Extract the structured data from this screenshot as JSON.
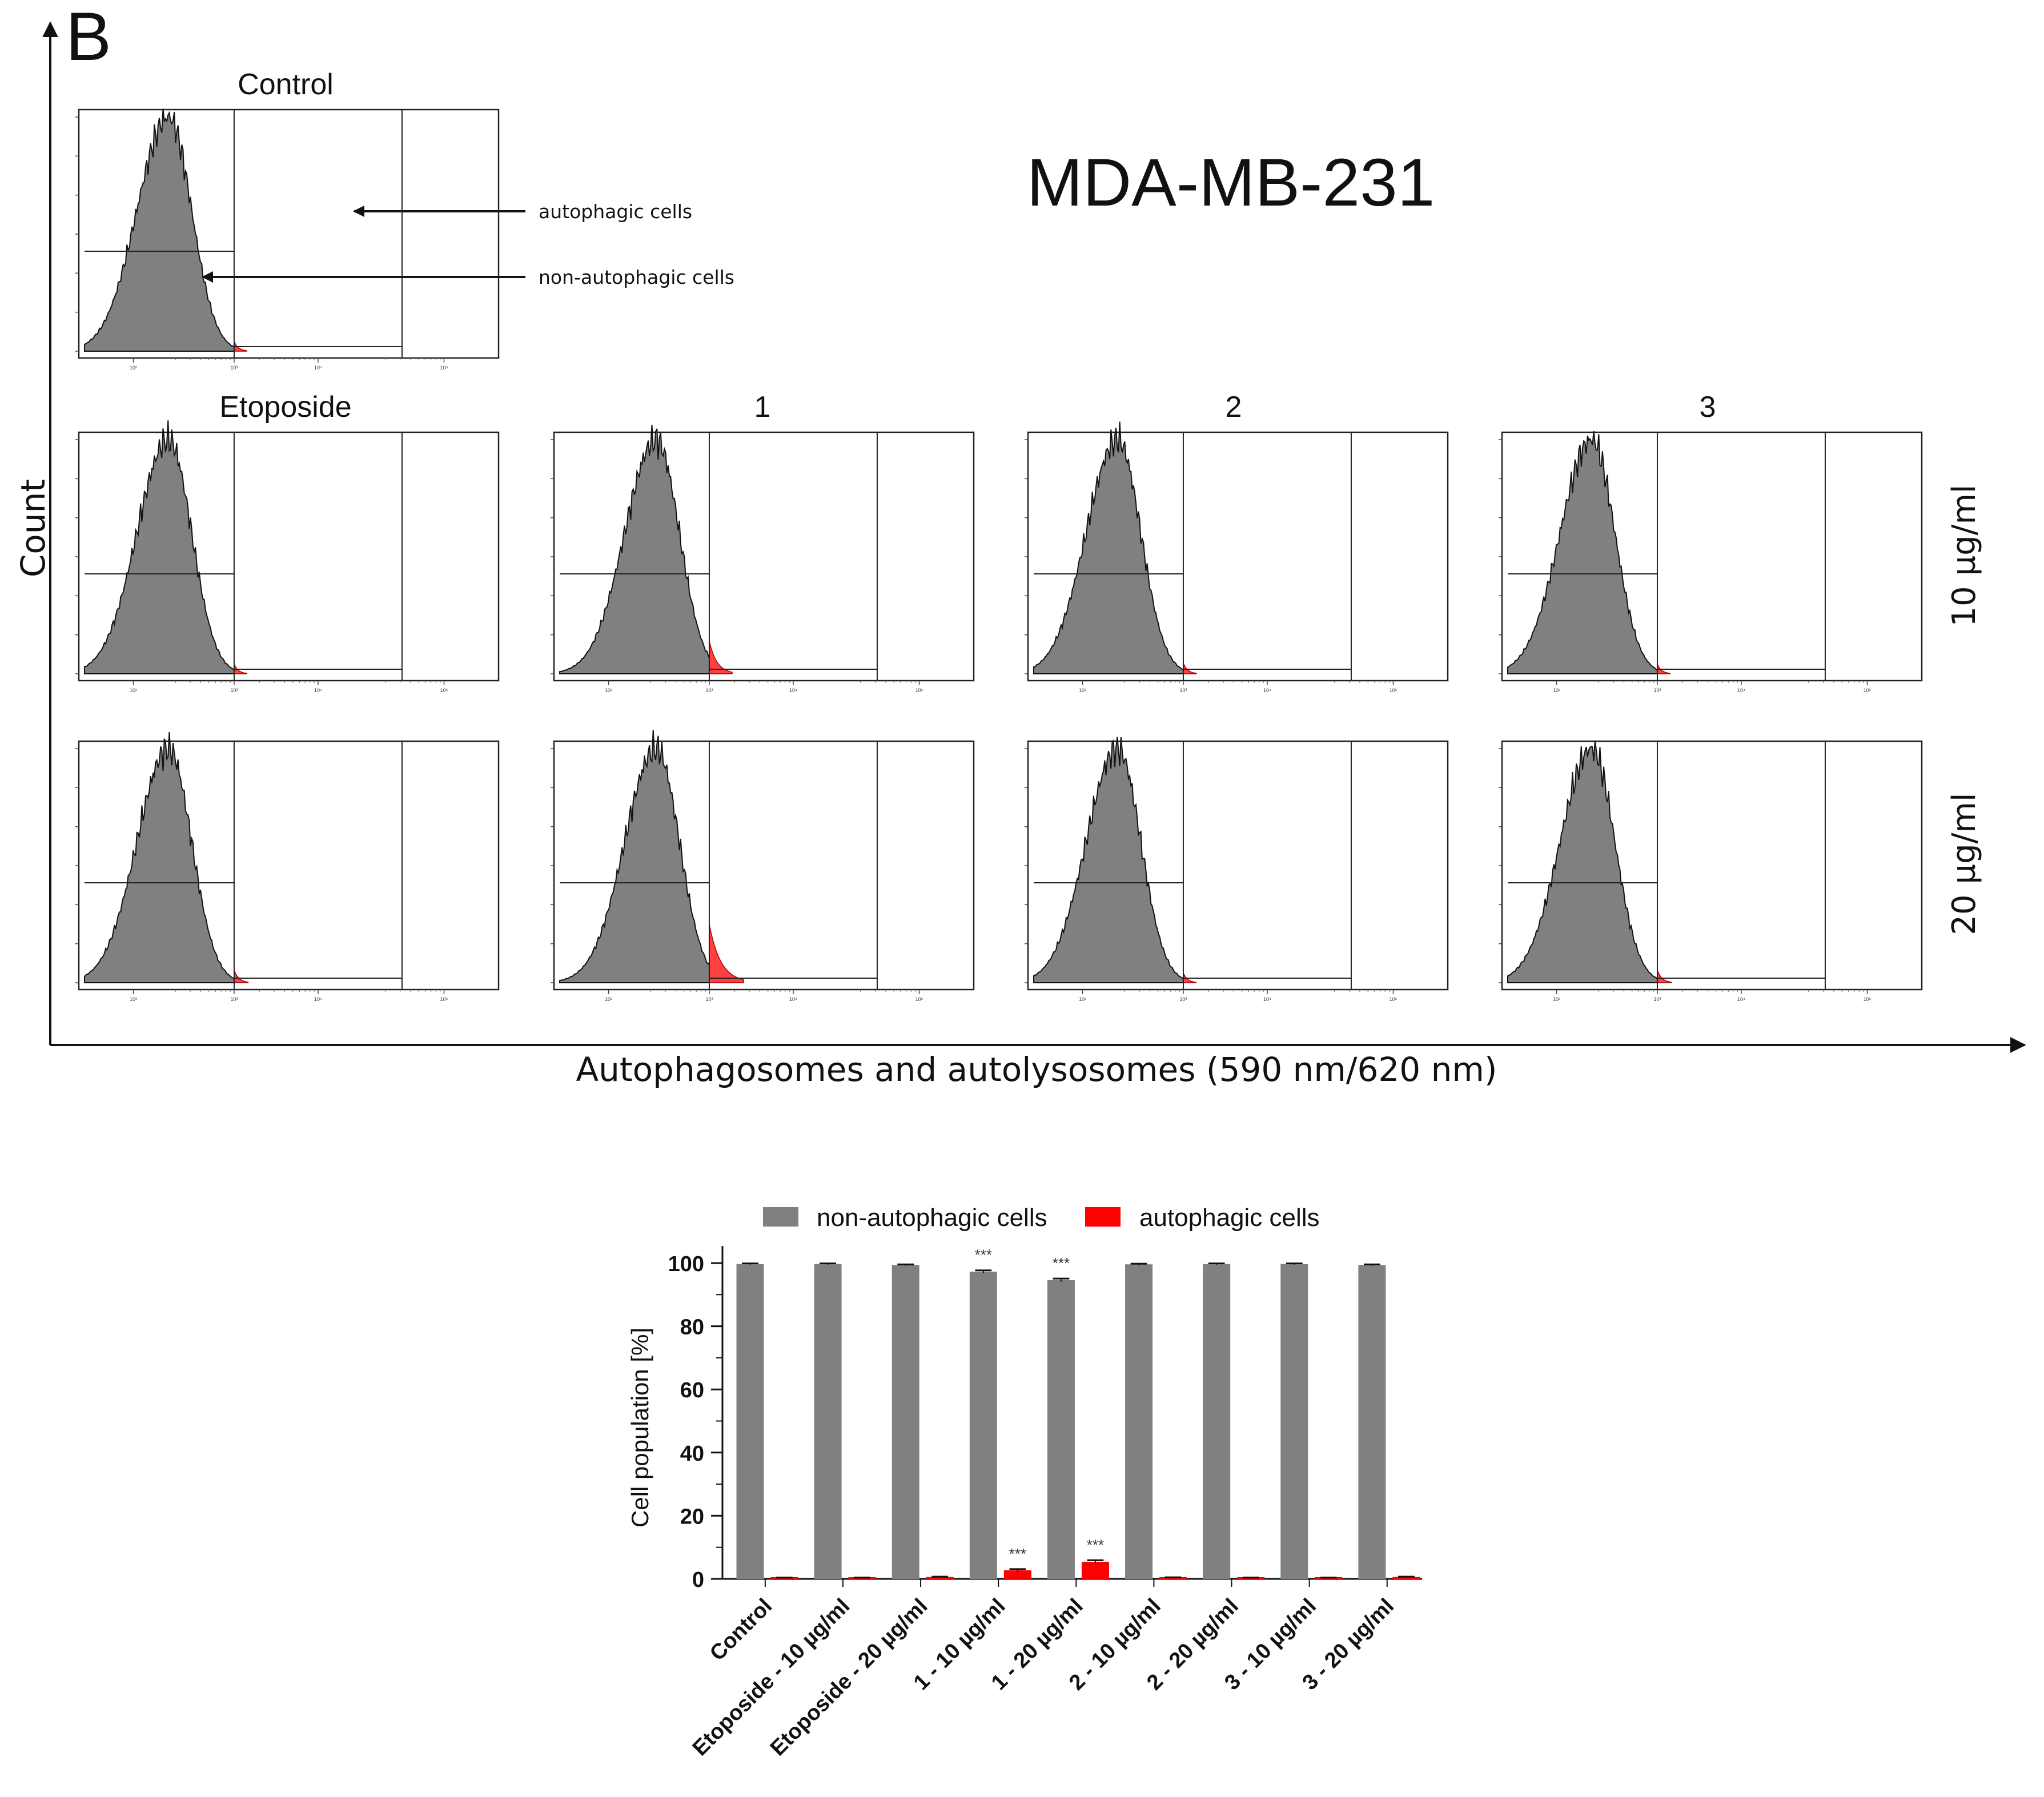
{
  "panel_letter": "B",
  "cell_line_title": "MDA-MB-231",
  "count_label": "Count",
  "x_axis_title": "Autophagosomes and autolysosomes (590 nm/620 nm)",
  "annotations": {
    "autophagic": "autophagic cells",
    "non_autophagic": "non-autophagic cells"
  },
  "row_labels": [
    "10 µg/ml",
    "20 µg/ml"
  ],
  "column_titles": {
    "control": "Control",
    "etoposide": "Etoposide",
    "c1": "1",
    "c2": "2",
    "c3": "3"
  },
  "colors": {
    "non_autophagic": "#808080",
    "autophagic": "#ff0000",
    "axis": "#111111"
  },
  "chart_data": [
    {
      "type": "histogram-grid",
      "description_of_panels": [
        {
          "row": "control",
          "title": "Control",
          "autophagic_tail": 0.3
        },
        {
          "row": "10 µg/ml",
          "title": "Etoposide",
          "autophagic_tail": 0.3
        },
        {
          "row": "10 µg/ml",
          "title": "1",
          "autophagic_tail": 2.7
        },
        {
          "row": "10 µg/ml",
          "title": "2",
          "autophagic_tail": 0.4
        },
        {
          "row": "10 µg/ml",
          "title": "3",
          "autophagic_tail": 0.3
        },
        {
          "row": "20 µg/ml",
          "title": "Etoposide",
          "autophagic_tail": 0.6
        },
        {
          "row": "20 µg/ml",
          "title": "1",
          "autophagic_tail": 5.4
        },
        {
          "row": "20 µg/ml",
          "title": "2",
          "autophagic_tail": 0.3
        },
        {
          "row": "20 µg/ml",
          "title": "3",
          "autophagic_tail": 0.6
        }
      ],
      "x_scale": "log",
      "x_ticks": [
        "10²",
        "10³",
        "10⁴",
        "10⁵"
      ]
    },
    {
      "type": "bar",
      "categories": [
        "Control",
        "Etoposide - 10 µg/ml",
        "Etoposide - 20 µg/ml",
        "1 - 10 µg/ml",
        "1 - 20 µg/ml",
        "2 - 10 µg/ml",
        "2 - 20 µg/ml",
        "3 - 10 µg/ml",
        "3 - 20 µg/ml"
      ],
      "series": [
        {
          "name": "non-autophagic cells",
          "values": [
            99.7,
            99.7,
            99.4,
            97.3,
            94.6,
            99.6,
            99.7,
            99.7,
            99.4
          ],
          "errors": [
            0.2,
            0.2,
            0.2,
            0.4,
            0.5,
            0.2,
            0.2,
            0.2,
            0.2
          ]
        },
        {
          "name": "autophagic cells",
          "values": [
            0.3,
            0.3,
            0.6,
            2.7,
            5.4,
            0.4,
            0.3,
            0.3,
            0.6
          ],
          "errors": [
            0.1,
            0.1,
            0.1,
            0.4,
            0.5,
            0.1,
            0.1,
            0.1,
            0.1
          ]
        }
      ],
      "significance": [
        {
          "category": "1 - 10 µg/ml",
          "series": "non-autophagic cells",
          "label": "***"
        },
        {
          "category": "1 - 20 µg/ml",
          "series": "non-autophagic cells",
          "label": "***"
        },
        {
          "category": "1 - 10 µg/ml",
          "series": "autophagic cells",
          "label": "***"
        },
        {
          "category": "1 - 20 µg/ml",
          "series": "autophagic cells",
          "label": "***"
        }
      ],
      "ylabel": "Cell population [%]",
      "ylim": [
        0,
        100
      ],
      "yticks": [
        0,
        20,
        40,
        60,
        80,
        100
      ],
      "legend_position": "top"
    }
  ]
}
